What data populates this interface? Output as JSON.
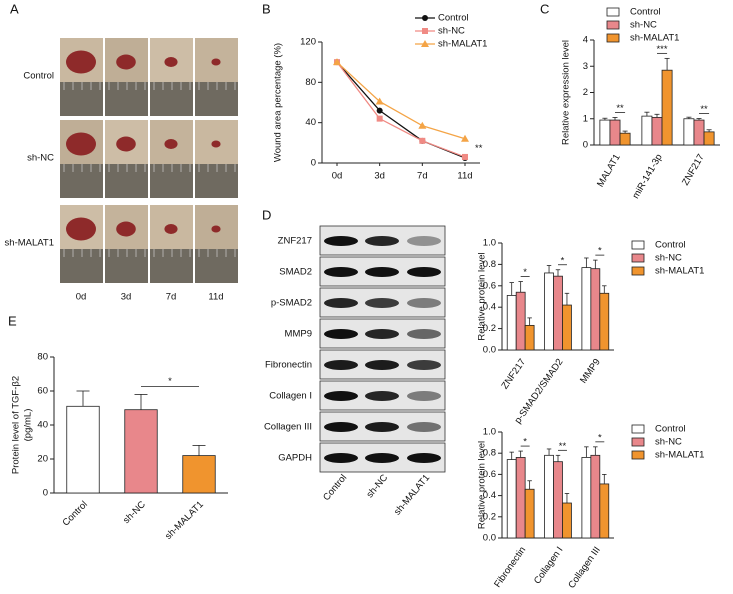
{
  "panel_labels": [
    "A",
    "B",
    "C",
    "D",
    "E"
  ],
  "panel_a": {
    "rows": [
      "Control",
      "sh-NC",
      "sh-MALAT1"
    ],
    "columns": [
      "0d",
      "3d",
      "7d",
      "11d"
    ]
  },
  "blot": {
    "rows": [
      "ZNF217",
      "SMAD2",
      "p-SMAD2",
      "MMP9",
      "Fibronectin",
      "Collagen I",
      "Collagen III",
      "GAPDH"
    ],
    "lanes": [
      "Control",
      "sh-NC",
      "sh-MALAT1"
    ]
  },
  "chart_data": [
    {
      "type": "line",
      "ylabel": "Wound area percentage (%)",
      "categories": [
        "0d",
        "3d",
        "7d",
        "11d"
      ],
      "series": [
        {
          "name": "Control",
          "color": "#111111",
          "marker": "circle",
          "values": [
            100,
            52,
            22,
            5
          ]
        },
        {
          "name": "sh-NC",
          "color": "#f08a84",
          "marker": "square",
          "values": [
            100,
            44,
            22,
            6
          ]
        },
        {
          "name": "sh-MALAT1",
          "color": "#f4a446",
          "marker": "triangle",
          "values": [
            100,
            61,
            37,
            24
          ]
        }
      ],
      "ylim": [
        0,
        120
      ],
      "yticks": [
        0,
        40,
        80,
        120
      ],
      "annotations": [
        "**"
      ]
    },
    {
      "type": "bar",
      "ylabel": "Relative expression level",
      "categories": [
        "MALAT1",
        "miR-141-3p",
        "ZNF217"
      ],
      "series": [
        {
          "name": "Control",
          "color": "#ffffff",
          "values": [
            0.95,
            1.1,
            1.0
          ],
          "errors": [
            0.07,
            0.15,
            0.06
          ]
        },
        {
          "name": "sh-NC",
          "color": "#e8878b",
          "values": [
            0.95,
            1.05,
            0.95
          ],
          "errors": [
            0.1,
            0.12,
            0.06
          ]
        },
        {
          "name": "sh-MALAT1",
          "color": "#f0942e",
          "values": [
            0.45,
            2.85,
            0.5
          ],
          "errors": [
            0.08,
            0.45,
            0.08
          ]
        }
      ],
      "ylim": [
        0,
        4
      ],
      "yticks": [
        0,
        1,
        2,
        3,
        4
      ],
      "annotations": [
        "**",
        "***",
        "**"
      ]
    },
    {
      "type": "bar",
      "ylabel": "Relative protein level",
      "categories": [
        "ZNF217",
        "p-SMAD2/SMAD2",
        "MMP9"
      ],
      "series": [
        {
          "name": "Control",
          "color": "#ffffff",
          "values": [
            0.51,
            0.72,
            0.77
          ],
          "errors": [
            0.12,
            0.07,
            0.09
          ]
        },
        {
          "name": "sh-NC",
          "color": "#e8878b",
          "values": [
            0.54,
            0.69,
            0.76
          ],
          "errors": [
            0.1,
            0.06,
            0.08
          ]
        },
        {
          "name": "sh-MALAT1",
          "color": "#f0942e",
          "values": [
            0.23,
            0.42,
            0.53
          ],
          "errors": [
            0.07,
            0.11,
            0.07
          ]
        }
      ],
      "ylim": [
        0,
        1
      ],
      "yticks": [
        {
          "value": 0,
          "label": "0.0"
        },
        0.2,
        0.4,
        0.6,
        0.8,
        {
          "value": 1,
          "label": "1.0"
        }
      ],
      "annotations": [
        "*",
        "*",
        "*"
      ]
    },
    {
      "type": "bar",
      "ylabel": "Relative protein level",
      "categories": [
        "Fibronectin",
        "Collagen I",
        "Collagen III"
      ],
      "series": [
        {
          "name": "Control",
          "color": "#ffffff",
          "values": [
            0.74,
            0.78,
            0.76
          ],
          "errors": [
            0.07,
            0.06,
            0.1
          ]
        },
        {
          "name": "sh-NC",
          "color": "#e8878b",
          "values": [
            0.76,
            0.72,
            0.78
          ],
          "errors": [
            0.06,
            0.06,
            0.08
          ]
        },
        {
          "name": "sh-MALAT1",
          "color": "#f0942e",
          "values": [
            0.46,
            0.33,
            0.51
          ],
          "errors": [
            0.08,
            0.09,
            0.09
          ]
        }
      ],
      "ylim": [
        0,
        1
      ],
      "yticks": [
        {
          "value": 0,
          "label": "0.0"
        },
        0.2,
        0.4,
        0.6,
        0.8,
        {
          "value": 1,
          "label": "1.0"
        }
      ],
      "annotations": [
        "*",
        "**",
        "*"
      ]
    },
    {
      "type": "bar",
      "ylabel": [
        "Protein level of TGF-β2",
        "(pg/mL)"
      ],
      "categories": [
        "Control",
        "sh-NC",
        "sh-MALAT1"
      ],
      "values": [
        51,
        49,
        22
      ],
      "errors": [
        9,
        9,
        6
      ],
      "colors": [
        "#ffffff",
        "#e8878b",
        "#f0942e"
      ],
      "ylim": [
        0,
        80
      ],
      "yticks": [
        0,
        20,
        40,
        60,
        80
      ],
      "annotations": [
        "*"
      ]
    }
  ]
}
